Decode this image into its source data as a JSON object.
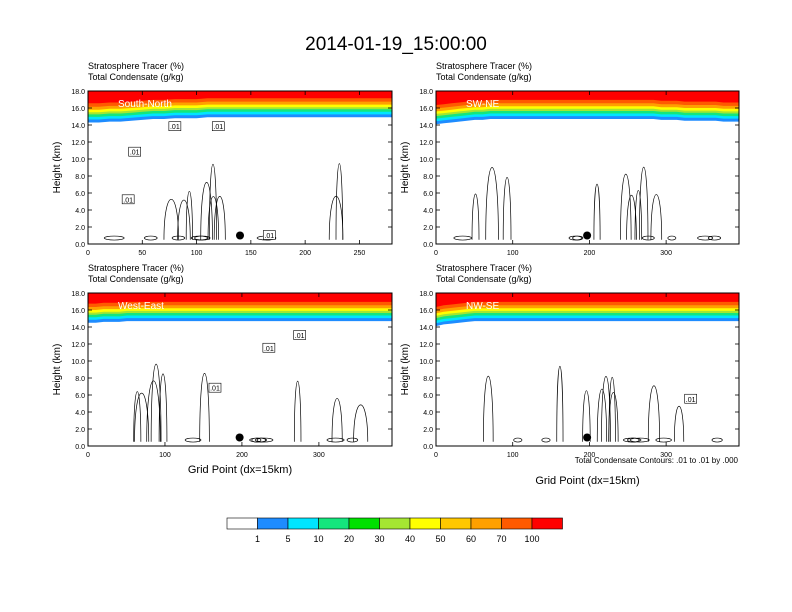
{
  "title": "2014-01-19_15:00:00",
  "palette": [
    "#ffffff",
    "#1e8cff",
    "#00e5ff",
    "#14e67d",
    "#00e000",
    "#a5e632",
    "#ffff00",
    "#ffc800",
    "#ffa000",
    "#ff5a00",
    "#ff0000"
  ],
  "colorbar": {
    "labels": [
      "1",
      "5",
      "10",
      "20",
      "30",
      "40",
      "50",
      "60",
      "70",
      "100"
    ]
  },
  "footnote": "Total Condensate Contours: .01 to .01 by .000",
  "chart_data": [
    {
      "type": "heatmap",
      "panel_label": "South-North",
      "header_line1": "Stratosphere Tracer   (%)",
      "header_line2": "Total Condensate   (g/kg)",
      "ylabel": "Height (km)",
      "xlabel": "",
      "xlim": [
        0,
        280
      ],
      "ylim": [
        0,
        18
      ],
      "xticks": [
        "0",
        "50",
        "100",
        "150",
        "200",
        "250"
      ],
      "xtick_values": [
        0,
        50,
        100,
        150,
        200,
        250
      ],
      "yticks": [
        "0.0",
        "2.0",
        "4.0",
        "6.0",
        "8.0",
        "10.0",
        "12.0",
        "14.0",
        "16.0",
        "18.0"
      ],
      "tracer_top_km": [
        15.2,
        15.2,
        15.3,
        15.3,
        15.4,
        15.5,
        15.6,
        15.6,
        15.7,
        15.7,
        15.7,
        15.8,
        15.8,
        15.8,
        15.8,
        15.8,
        15.8,
        15.8,
        15.8,
        15.8,
        15.8,
        15.8,
        15.8,
        15.8,
        15.8,
        15.8,
        15.8,
        15.8,
        15.8
      ],
      "contour_labels": [
        {
          "text": ".01",
          "x": 80,
          "y": 13.8
        },
        {
          "text": ".01",
          "x": 120,
          "y": 13.8
        },
        {
          "text": ".01",
          "x": 43,
          "y": 10.8
        },
        {
          "text": ".01",
          "x": 37,
          "y": 5.2
        },
        {
          "text": ".01",
          "x": 167,
          "y": 1.0
        }
      ],
      "marker": {
        "x": 140,
        "y": 1.0
      }
    },
    {
      "type": "heatmap",
      "panel_label": "SW-NE",
      "header_line1": "Stratosphere Tracer   (%)",
      "header_line2": "Total Condensate   (g/kg)",
      "ylabel": "Height (km)",
      "xlabel": "",
      "xlim": [
        0,
        395
      ],
      "ylim": [
        0,
        18
      ],
      "xticks": [
        "0",
        "100",
        "200",
        "300"
      ],
      "xtick_values": [
        0,
        100,
        200,
        300
      ],
      "yticks": [
        "0.0",
        "2.0",
        "4.0",
        "6.0",
        "8.0",
        "10.0",
        "12.0",
        "14.0",
        "16.0",
        "18.0"
      ],
      "tracer_top_km": [
        15.0,
        15.1,
        15.2,
        15.3,
        15.4,
        15.5,
        15.5,
        15.6,
        15.6,
        15.6,
        15.6,
        15.6,
        15.6,
        15.6,
        15.6,
        15.6,
        15.6,
        15.6,
        15.6,
        15.6,
        15.6,
        15.6,
        15.6,
        15.6,
        15.6,
        15.6,
        15.6,
        15.6,
        15.6,
        15.5,
        15.5,
        15.5,
        15.4,
        15.4,
        15.4,
        15.4,
        15.4,
        15.3,
        15.3,
        15.3
      ],
      "contour_labels": [],
      "marker": {
        "x": 197,
        "y": 1.0
      }
    },
    {
      "type": "heatmap",
      "panel_label": "West-East",
      "header_line1": "Stratosphere Tracer   (%)",
      "header_line2": "Total Condensate   (g/kg)",
      "ylabel": "Height (km)",
      "xlabel": "Grid Point (dx=15km)",
      "xlim": [
        0,
        395
      ],
      "ylim": [
        0,
        18
      ],
      "xticks": [
        "0",
        "100",
        "200",
        "300"
      ],
      "xtick_values": [
        0,
        100,
        200,
        300
      ],
      "yticks": [
        "0.0",
        "2.0",
        "4.0",
        "6.0",
        "8.0",
        "10.0",
        "12.0",
        "14.0",
        "16.0",
        "18.0"
      ],
      "tracer_top_km": [
        15.4,
        15.4,
        15.5,
        15.5,
        15.5,
        15.6,
        15.6,
        15.6,
        15.6,
        15.6,
        15.6,
        15.6,
        15.6,
        15.6,
        15.6,
        15.6,
        15.6,
        15.6,
        15.6,
        15.6,
        15.6,
        15.6,
        15.6,
        15.6,
        15.6,
        15.6,
        15.6,
        15.6,
        15.6,
        15.6,
        15.6,
        15.6,
        15.6,
        15.6,
        15.6,
        15.6,
        15.6,
        15.6,
        15.6,
        15.6
      ],
      "contour_labels": [
        {
          "text": ".01",
          "x": 235,
          "y": 11.5
        },
        {
          "text": ".01",
          "x": 275,
          "y": 13.0
        },
        {
          "text": ".01",
          "x": 165,
          "y": 6.8
        }
      ],
      "marker": {
        "x": 197,
        "y": 1.0
      }
    },
    {
      "type": "heatmap",
      "panel_label": "NW-SE",
      "header_line1": "Stratosphere Tracer   (%)",
      "header_line2": "Total Condensate   (g/kg)",
      "ylabel": "Height (km)",
      "xlabel": "Grid Point (dx=15km)",
      "xlim": [
        0,
        395
      ],
      "ylim": [
        0,
        18
      ],
      "xticks": [
        "0",
        "100",
        "200",
        "300"
      ],
      "xtick_values": [
        0,
        100,
        200,
        300
      ],
      "yticks": [
        "0.0",
        "2.0",
        "4.0",
        "6.0",
        "8.0",
        "10.0",
        "12.0",
        "14.0",
        "16.0",
        "18.0"
      ],
      "tracer_top_km": [
        15.0,
        15.2,
        15.3,
        15.4,
        15.5,
        15.6,
        15.6,
        15.6,
        15.6,
        15.6,
        15.6,
        15.6,
        15.6,
        15.6,
        15.6,
        15.6,
        15.6,
        15.6,
        15.6,
        15.6,
        15.6,
        15.6,
        15.6,
        15.6,
        15.6,
        15.6,
        15.6,
        15.6,
        15.6,
        15.6,
        15.6,
        15.6,
        15.6,
        15.6,
        15.6,
        15.6,
        15.6,
        15.6,
        15.6,
        15.6
      ],
      "contour_labels": [
        {
          "text": ".01",
          "x": 332,
          "y": 5.5
        }
      ],
      "marker": {
        "x": 197,
        "y": 1.0
      }
    }
  ]
}
